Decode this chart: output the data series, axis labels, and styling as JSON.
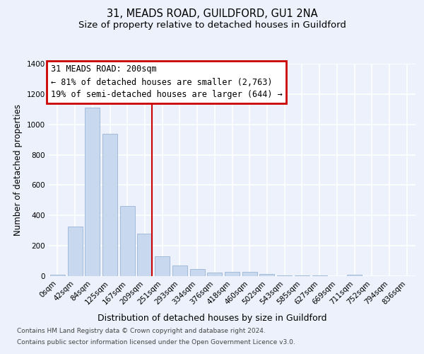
{
  "title": "31, MEADS ROAD, GUILDFORD, GU1 2NA",
  "subtitle": "Size of property relative to detached houses in Guildford",
  "xlabel": "Distribution of detached houses by size in Guildford",
  "ylabel": "Number of detached properties",
  "bar_labels": [
    "0sqm",
    "42sqm",
    "84sqm",
    "125sqm",
    "167sqm",
    "209sqm",
    "251sqm",
    "293sqm",
    "334sqm",
    "376sqm",
    "418sqm",
    "460sqm",
    "502sqm",
    "543sqm",
    "585sqm",
    "627sqm",
    "669sqm",
    "711sqm",
    "752sqm",
    "794sqm",
    "836sqm"
  ],
  "bar_values": [
    10,
    325,
    1110,
    940,
    460,
    280,
    130,
    70,
    45,
    25,
    28,
    28,
    15,
    5,
    5,
    5,
    0,
    10,
    0,
    0,
    0
  ],
  "bar_color": "#c8d8ef",
  "bar_edgecolor": "#9ab4d4",
  "vline_color": "#cc0000",
  "vline_x": 5.4,
  "ann_line1": "31 MEADS ROAD: 200sqm",
  "ann_line2": "← 81% of detached houses are smaller (2,763)",
  "ann_line3": "19% of semi-detached houses are larger (644) →",
  "ann_edgecolor": "#cc0000",
  "ylim": [
    0,
    1400
  ],
  "yticks": [
    0,
    200,
    400,
    600,
    800,
    1000,
    1200,
    1400
  ],
  "bg_color": "#edf1fb",
  "grid_color": "#ffffff",
  "title_fontsize": 10.5,
  "subtitle_fontsize": 9.5,
  "ylabel_fontsize": 8.5,
  "xlabel_fontsize": 9,
  "tick_fontsize": 7.5,
  "ann_fontsize": 8.5,
  "footnote1": "Contains HM Land Registry data © Crown copyright and database right 2024.",
  "footnote2": "Contains public sector information licensed under the Open Government Licence v3.0.",
  "footnote_fontsize": 6.5
}
